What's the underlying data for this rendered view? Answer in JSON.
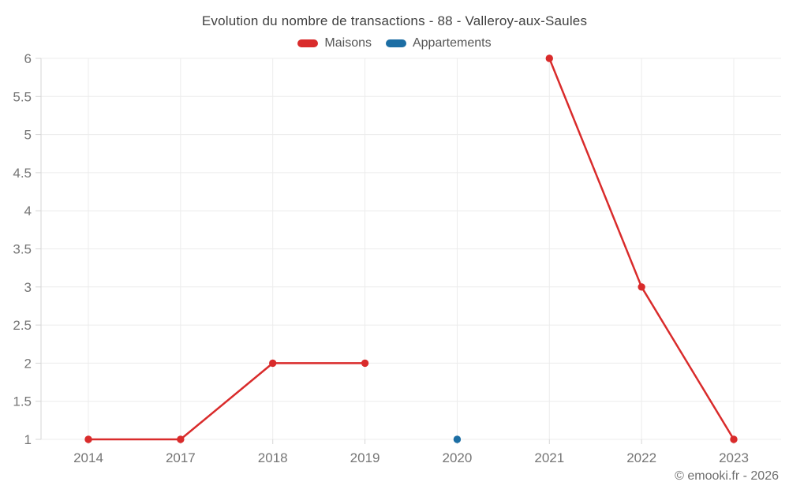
{
  "title": "Evolution du nombre de transactions - 88 - Valleroy-aux-Saules",
  "footer": "© emooki.fr - 2026",
  "legend": {
    "items": [
      {
        "label": "Maisons",
        "color": "#d92b2b"
      },
      {
        "label": "Appartements",
        "color": "#1c6ea4"
      }
    ]
  },
  "colors": {
    "grid": "#ececec",
    "axis": "#d6d6d6",
    "tick_text": "#757575",
    "title_text": "#3f3f3f",
    "legend_text": "#555555",
    "footer_text": "#6e6e6e",
    "maisons_red": "#d92b2b",
    "appartements_blue": "#1c6ea4"
  },
  "chart_data": {
    "type": "line",
    "title": "Evolution du nombre de transactions - 88 - Valleroy-aux-Saules",
    "xlabel": "",
    "ylabel": "",
    "categories": [
      "2014",
      "2017",
      "2018",
      "2019",
      "2020",
      "2021",
      "2022",
      "2023"
    ],
    "ylim": [
      1,
      6
    ],
    "ytick_step": 0.5,
    "grid": true,
    "legend_position": "top",
    "series": [
      {
        "name": "Maisons",
        "color": "#d92b2b",
        "segments": [
          [
            [
              "2014",
              1
            ],
            [
              "2017",
              1
            ],
            [
              "2018",
              2
            ],
            [
              "2019",
              2
            ]
          ],
          [
            [
              "2021",
              6
            ],
            [
              "2022",
              3
            ],
            [
              "2023",
              1
            ]
          ]
        ]
      },
      {
        "name": "Appartements",
        "color": "#1c6ea4",
        "segments": [
          [
            [
              "2020",
              1
            ]
          ]
        ]
      }
    ]
  }
}
